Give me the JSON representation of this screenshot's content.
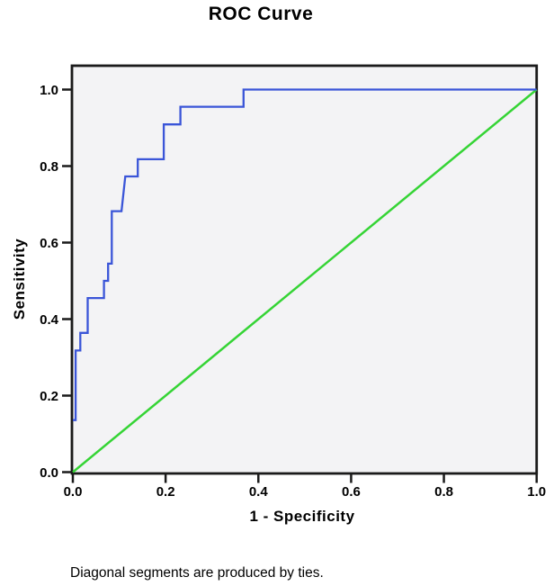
{
  "title": "ROC Curve",
  "footnote": "Diagonal segments are produced by ties.",
  "axes": {
    "x": {
      "label": "1 - Specificity",
      "ticks": [
        "0.0",
        "0.2",
        "0.4",
        "0.6",
        "0.8",
        "1.0"
      ],
      "range": [
        0,
        1
      ]
    },
    "y": {
      "label": "Sensitivity",
      "ticks": [
        "0.0",
        "0.2",
        "0.4",
        "0.6",
        "0.8",
        "1.0"
      ],
      "range": [
        0,
        1
      ]
    }
  },
  "colors": {
    "roc_curve": "#3a55d8",
    "reference_line": "#35d435",
    "plot_background": "#f3f3f5",
    "axis": "#1a1a1a",
    "text": "#000000"
  },
  "chart_data": {
    "type": "line",
    "title": "ROC Curve",
    "xlabel": "1 - Specificity",
    "ylabel": "Sensitivity",
    "xlim": [
      0,
      1
    ],
    "ylim": [
      0,
      1
    ],
    "grid": false,
    "legend": false,
    "x_ticks": [
      0,
      0.2,
      0.4,
      0.6,
      0.8,
      1.0
    ],
    "y_ticks": [
      0,
      0.2,
      0.4,
      0.6,
      0.8,
      1.0
    ],
    "series": [
      {
        "name": "ROC curve",
        "color": "#3a55d8",
        "line_style": "stepped",
        "points": [
          [
            0.0,
            0.136
          ],
          [
            0.006,
            0.136
          ],
          [
            0.006,
            0.318
          ],
          [
            0.016,
            0.318
          ],
          [
            0.016,
            0.364
          ],
          [
            0.032,
            0.364
          ],
          [
            0.032,
            0.455
          ],
          [
            0.067,
            0.455
          ],
          [
            0.067,
            0.5
          ],
          [
            0.076,
            0.5
          ],
          [
            0.076,
            0.545
          ],
          [
            0.084,
            0.545
          ],
          [
            0.084,
            0.682
          ],
          [
            0.105,
            0.682
          ],
          [
            0.113,
            0.773
          ],
          [
            0.14,
            0.773
          ],
          [
            0.14,
            0.818
          ],
          [
            0.196,
            0.818
          ],
          [
            0.196,
            0.909
          ],
          [
            0.232,
            0.909
          ],
          [
            0.232,
            0.955
          ],
          [
            0.368,
            0.955
          ],
          [
            0.368,
            1.0
          ],
          [
            1.0,
            1.0
          ]
        ]
      },
      {
        "name": "Reference diagonal",
        "color": "#35d435",
        "line_style": "straight",
        "points": [
          [
            0,
            0
          ],
          [
            1,
            1
          ]
        ]
      }
    ],
    "annotations": [
      "Diagonal segments are produced by ties."
    ]
  }
}
